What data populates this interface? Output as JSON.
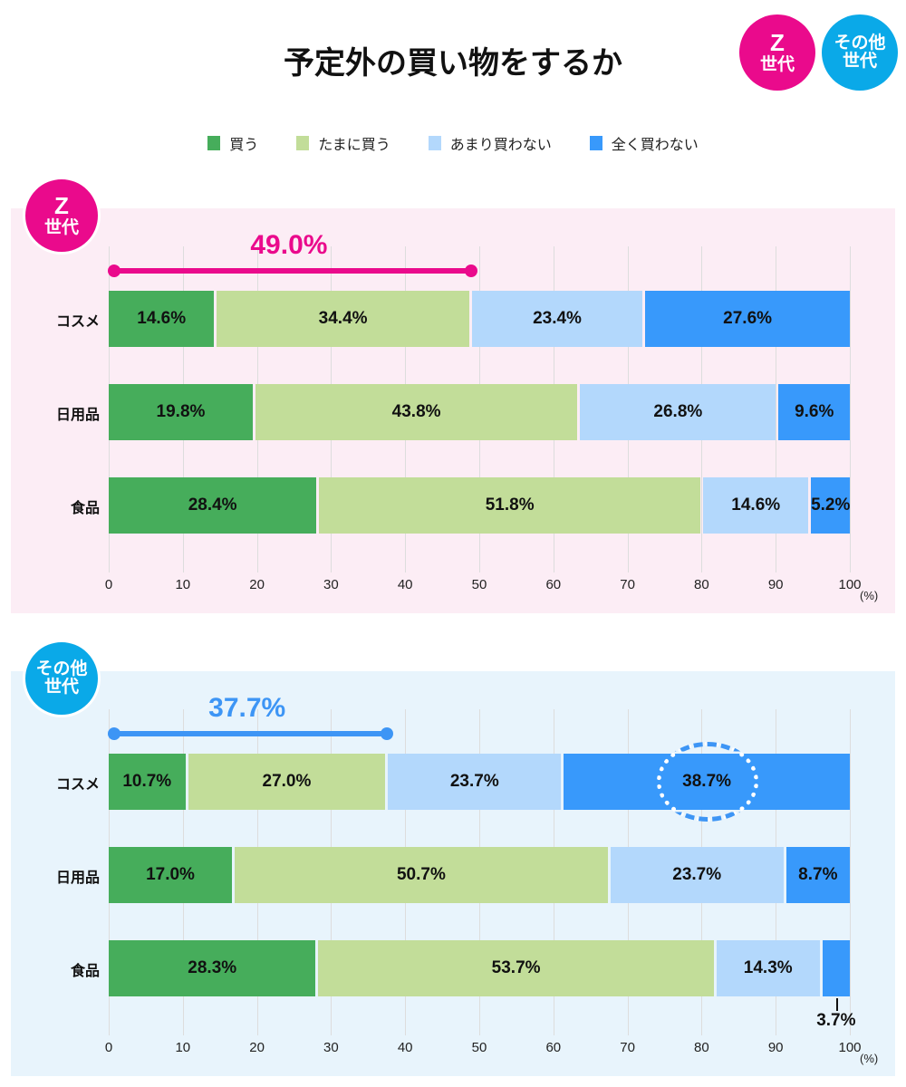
{
  "title": "予定外の買い物をするか",
  "badges": {
    "z": {
      "line1": "Z",
      "line2": "世代"
    },
    "other": {
      "line1": "その他",
      "line2": "世代"
    }
  },
  "colors": {
    "pink": "#ea0a8c",
    "cyan": "#0aa9e8",
    "buy": "#46ad5b",
    "sometimes": "#c2dd99",
    "rarely": "#b3d8fc",
    "never": "#3899fb",
    "bracket_blue": "#3d95f5"
  },
  "chart_data": [
    {
      "type": "bar",
      "stacked": true,
      "orientation": "horizontal",
      "group": "Z世代",
      "categories": [
        "コスメ",
        "日用品",
        "食品"
      ],
      "series": [
        {
          "name": "買う",
          "values": [
            14.6,
            19.8,
            28.4
          ]
        },
        {
          "name": "たまに買う",
          "values": [
            34.4,
            43.8,
            51.8
          ]
        },
        {
          "name": "あまり買わない",
          "values": [
            23.4,
            26.8,
            14.6
          ]
        },
        {
          "name": "全く買わない",
          "values": [
            27.6,
            9.6,
            5.2
          ]
        }
      ],
      "labels": [
        [
          "14.6%",
          "34.4%",
          "23.4%",
          "27.6%"
        ],
        [
          "19.8%",
          "43.8%",
          "26.8%",
          "9.6%"
        ],
        [
          "28.4%",
          "51.8%",
          "14.6%",
          "5.2%"
        ]
      ],
      "annotation": {
        "value": 49.0,
        "label": "49.0%"
      },
      "xlim": [
        0,
        100
      ],
      "xticks": [
        "0",
        "10",
        "20",
        "30",
        "40",
        "50",
        "60",
        "70",
        "80",
        "90",
        "100"
      ],
      "unit": "(%)",
      "grid": true
    },
    {
      "type": "bar",
      "stacked": true,
      "orientation": "horizontal",
      "group": "その他世代",
      "categories": [
        "コスメ",
        "日用品",
        "食品"
      ],
      "series": [
        {
          "name": "買う",
          "values": [
            10.7,
            17.0,
            28.3
          ]
        },
        {
          "name": "たまに買う",
          "values": [
            27.0,
            50.7,
            53.7
          ]
        },
        {
          "name": "あまり買わない",
          "values": [
            23.7,
            23.7,
            14.3
          ]
        },
        {
          "name": "全く買わない",
          "values": [
            38.7,
            8.7,
            3.7
          ]
        }
      ],
      "labels": [
        [
          "10.7%",
          "27.0%",
          "23.7%",
          "38.7%"
        ],
        [
          "17.0%",
          "50.7%",
          "23.7%",
          "8.7%"
        ],
        [
          "28.3%",
          "53.7%",
          "14.3%",
          "3.7%"
        ]
      ],
      "annotation": {
        "value": 37.7,
        "label": "37.7%"
      },
      "highlight": "38.7%",
      "xlim": [
        0,
        100
      ],
      "xticks": [
        "0",
        "10",
        "20",
        "30",
        "40",
        "50",
        "60",
        "70",
        "80",
        "90",
        "100"
      ],
      "unit": "(%)",
      "grid": true
    }
  ],
  "legend": [
    "買う",
    "たまに買う",
    "あまり買わない",
    "全く買わない"
  ]
}
